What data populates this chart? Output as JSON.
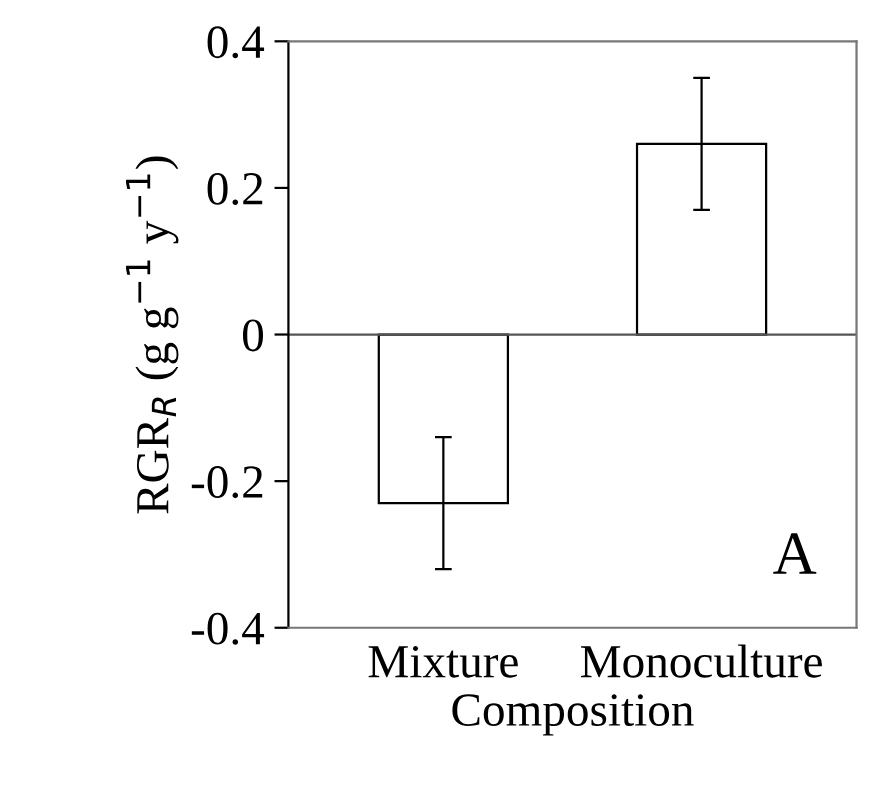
{
  "chart_data": {
    "type": "bar",
    "categories": [
      "Mixture",
      "Monoculture"
    ],
    "values": [
      -0.23,
      0.26
    ],
    "errors": [
      0.09,
      0.09
    ],
    "color": "#ffffff",
    "xlabel": "Composition",
    "ylabel": "RGR$_{R}$ (g g$^{−1}$ y$^{−1}$)",
    "ylim": [
      -0.4,
      0.4
    ],
    "yticks": [
      -0.4,
      -0.2,
      0,
      0.2,
      0.4
    ],
    "ref_lines": [
      {
        "axis": "y",
        "value": 0,
        "color": "#555555"
      }
    ],
    "annotations": [
      "A"
    ],
    "legend": false
  }
}
